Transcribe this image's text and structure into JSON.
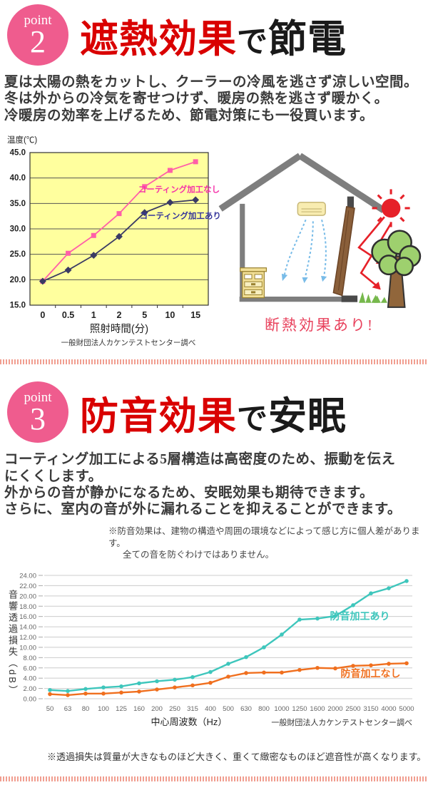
{
  "point2": {
    "badge": {
      "label": "point",
      "number": "2"
    },
    "title": {
      "red": "遮熱効果",
      "particle": "で",
      "black": "節電"
    },
    "body_lines": [
      "夏は太陽の熱をカットし、クーラーの冷風を逃さず涼しい空間。",
      "冬は外からの冷気を寄せつけず、暖房の熱を逃さず暖かく。",
      "冷暖房の効率を上げるため、節電対策にも一役買います。"
    ],
    "illustration_caption": "断熱効果あり!"
  },
  "point3": {
    "badge": {
      "label": "point",
      "number": "3"
    },
    "title": {
      "red": "防音効果",
      "particle": "で",
      "black": "安眠"
    },
    "body_lines": [
      "コーティング加工による5層構造は高密度のため、振動を伝え",
      "にくくします。",
      "外からの音が静かになるため、安眠効果も期待できます。",
      "さらに、室内の音が外に漏れることを抑えることができます。"
    ],
    "note_lines": [
      "※防音効果は、建物の構造や周囲の環境などによって感じ方に個人差があります。",
      "全ての音を防ぐわけではありません。"
    ]
  },
  "footer_note": "※透過損失は質量が大きなものほど大きく、重くて緻密なものほど遮音性が高くなります。",
  "colors": {
    "accent_pink": "#EF5C8E",
    "heading_red": "#D90000",
    "divider_salmon": "#F19E90",
    "illustration_caption_red": "#E8415C"
  },
  "chart_data": [
    {
      "type": "line",
      "title": "温度(℃)",
      "xlabel": "照射時間(分)",
      "caption": "一般財団法人カケンテストセンター調べ",
      "categories": [
        "0",
        "0.5",
        "1",
        "2",
        "5",
        "10",
        "15"
      ],
      "ylim": [
        15,
        45
      ],
      "ytick_values": [
        45,
        40,
        35,
        30,
        25,
        20,
        15
      ],
      "ytick_labels": [
        "45.0",
        "40.0",
        "35.0",
        "30.0",
        "25.0",
        "20.0",
        "15.0"
      ],
      "grid": true,
      "plot_bg": "#FFFF9E",
      "grid_color": "#555555",
      "border_color": "#333333",
      "tick_label_color": "#222222",
      "legend_position": "inside-right",
      "series": [
        {
          "name": "コーティング加工なし",
          "color": "#FF5FA8",
          "label_color": "#F531A8",
          "marker": "square",
          "values": [
            19.7,
            25.2,
            28.7,
            33.0,
            38.3,
            41.5,
            43.2
          ],
          "label_xi": 3.75,
          "label_y": 37.2
        },
        {
          "name": "コーティング加工あり",
          "color": "#3A3A64",
          "label_color": "#34349B",
          "marker": "diamond",
          "values": [
            19.7,
            21.9,
            24.8,
            28.5,
            33.2,
            35.2,
            35.7
          ],
          "label_xi": 3.8,
          "label_y": 32.0
        }
      ]
    },
    {
      "type": "line",
      "xlabel": "中心周波数（Hz）",
      "ylabel": "音響透過損失（dB）",
      "caption": "一般財団法人カケンテストセンター調べ",
      "categories": [
        "50",
        "63",
        "80",
        "100",
        "125",
        "160",
        "200",
        "250",
        "315",
        "400",
        "500",
        "630",
        "800",
        "1000",
        "1250",
        "1600",
        "2000",
        "2500",
        "3150",
        "4000",
        "5000"
      ],
      "ylim": [
        0,
        24
      ],
      "ytick_values": [
        24,
        22,
        20,
        18,
        16,
        14,
        12,
        10,
        8,
        6,
        4,
        2,
        0
      ],
      "ytick_labels": [
        "24.00",
        "22.00",
        "20.00",
        "18.00",
        "16.00",
        "14.00",
        "12.00",
        "10.00",
        "8.00",
        "6.00",
        "4.00",
        "2.00",
        "0.00"
      ],
      "grid": true,
      "plot_bg": "#FFFFFF",
      "grid_color": "#CCCCCC",
      "tick_label_color": "#666666",
      "legend_position": "inside-right",
      "series": [
        {
          "name": "防音加工あり",
          "color": "#3EC6BC",
          "label_color": "#3EC6BC",
          "marker": "circle",
          "values": [
            1.7,
            1.5,
            1.9,
            2.2,
            2.4,
            3.0,
            3.4,
            3.7,
            4.2,
            5.2,
            6.8,
            8.1,
            10.0,
            12.5,
            15.4,
            15.6,
            16.1,
            18.2,
            20.5,
            21.5,
            22.9
          ],
          "label_xi": 15.7,
          "label_y": 15.4
        },
        {
          "name": "防音加工なし",
          "color": "#F06F1E",
          "label_color": "#F06F1E",
          "marker": "circle",
          "values": [
            0.9,
            0.7,
            1.0,
            1.0,
            1.2,
            1.4,
            1.8,
            2.2,
            2.6,
            3.1,
            4.3,
            5.0,
            5.1,
            5.1,
            5.6,
            6.0,
            5.9,
            6.4,
            6.5,
            6.8,
            6.9
          ],
          "label_xi": 16.3,
          "label_y": 4.2
        }
      ]
    }
  ]
}
